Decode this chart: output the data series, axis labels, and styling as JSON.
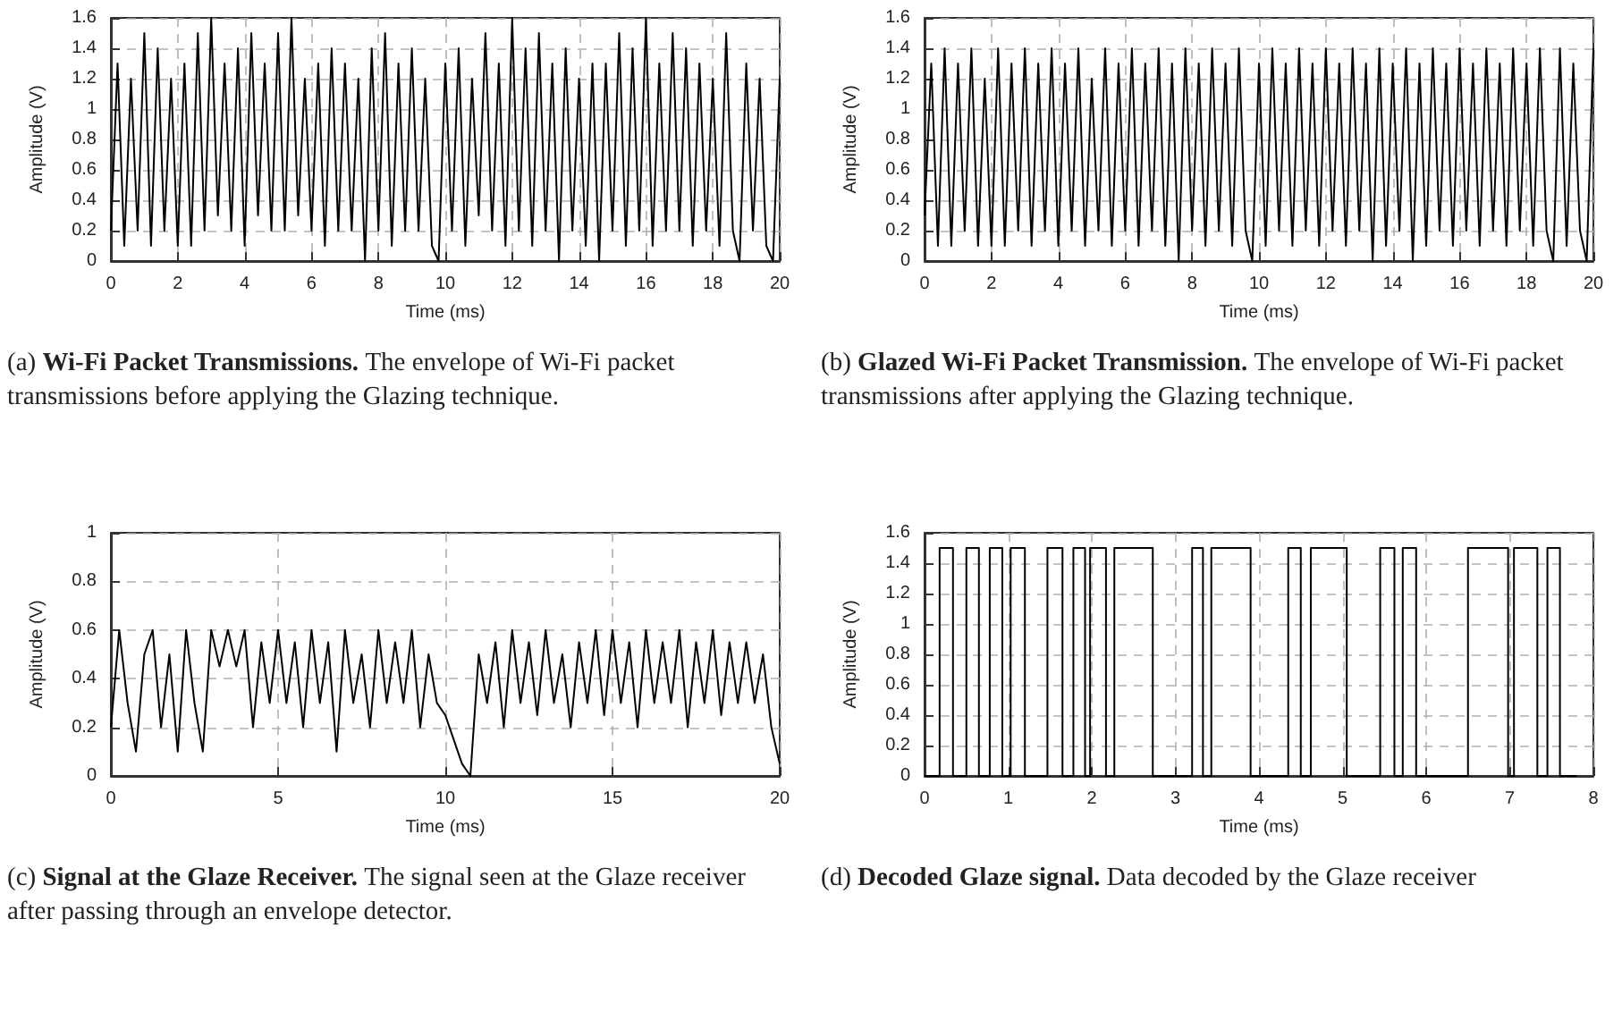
{
  "chart_data": [
    {
      "type": "line",
      "annotations": [
        "(a)"
      ],
      "title": "Wi-Fi Packet Transmissions.",
      "subtitle": "The envelope of Wi-Fi packet transmissions before applying the Glazing technique.",
      "xlabel": "Time (ms)",
      "ylabel": "Amplitude (V)",
      "xlim": [
        0,
        20
      ],
      "xticks": [
        0,
        2,
        4,
        6,
        8,
        10,
        12,
        14,
        16,
        18,
        20
      ],
      "ylim": [
        0,
        1.6
      ],
      "yticks": [
        0,
        0.2,
        0.4,
        0.6,
        0.8,
        1,
        1.2,
        1.4,
        1.6
      ],
      "grid": true,
      "line_style": "solid",
      "x": [
        0,
        0.2,
        0.4,
        0.6,
        0.8,
        1,
        1.2,
        1.4,
        1.6,
        1.8,
        2,
        2.2,
        2.4,
        2.6,
        2.8,
        3,
        3.2,
        3.4,
        3.6,
        3.8,
        4,
        4.2,
        4.4,
        4.6,
        4.8,
        5,
        5.2,
        5.4,
        5.6,
        5.8,
        6,
        6.2,
        6.4,
        6.6,
        6.8,
        7,
        7.2,
        7.4,
        7.6,
        7.8,
        8,
        8.2,
        8.4,
        8.6,
        8.8,
        9,
        9.2,
        9.4,
        9.6,
        9.8,
        10,
        10.2,
        10.4,
        10.6,
        10.8,
        11,
        11.2,
        11.4,
        11.6,
        11.8,
        12,
        12.2,
        12.4,
        12.6,
        12.8,
        13,
        13.2,
        13.4,
        13.6,
        13.8,
        14,
        14.2,
        14.4,
        14.6,
        14.8,
        15,
        15.2,
        15.4,
        15.6,
        15.8,
        16,
        16.2,
        16.4,
        16.6,
        16.8,
        17,
        17.2,
        17.4,
        17.6,
        17.8,
        18,
        18.2,
        18.4,
        18.6,
        18.8,
        19,
        19.2,
        19.4,
        19.6,
        19.8,
        20
      ],
      "series": [
        {
          "color": "#000000",
          "values": [
            0.2,
            1.3,
            0.1,
            1.2,
            0.2,
            1.5,
            0.1,
            1.4,
            0.2,
            1.2,
            0.1,
            1.3,
            0.1,
            1.5,
            0.2,
            1.6,
            0.3,
            1.3,
            0.2,
            1.4,
            0.1,
            1.5,
            0.3,
            1.3,
            0.2,
            1.5,
            0.2,
            1.6,
            0.3,
            1.2,
            0.2,
            1.3,
            0.1,
            1.4,
            0.2,
            1.3,
            0.2,
            1.2,
            0,
            1.4,
            0.2,
            1.5,
            0.1,
            1.3,
            0.2,
            1.4,
            0.2,
            1.2,
            0.1,
            0,
            1.3,
            0.2,
            1.4,
            0.1,
            1.2,
            0.3,
            1.5,
            0.2,
            1.3,
            0.1,
            1.6,
            0.2,
            1.4,
            0.1,
            1.5,
            0.2,
            1.3,
            0,
            1.4,
            0.2,
            1.2,
            0.1,
            1.3,
            0,
            1.3,
            0.2,
            1.5,
            0.1,
            1.4,
            0.2,
            1.6,
            0.1,
            1.3,
            0.2,
            1.5,
            0.2,
            1.4,
            0.1,
            1.3,
            0.2,
            1.2,
            0.1,
            1.5,
            0.2,
            0,
            1.3,
            0.2,
            1.2,
            0.1,
            0,
            1.2
          ]
        }
      ]
    },
    {
      "type": "line",
      "annotations": [
        "(b)"
      ],
      "title": "Glazed Wi-Fi Packet Transmission.",
      "subtitle": "The envelope of Wi-Fi packet transmissions after applying the Glazing technique.",
      "xlabel": "Time (ms)",
      "ylabel": "Amplitude (V)",
      "xlim": [
        0,
        20
      ],
      "xticks": [
        0,
        2,
        4,
        6,
        8,
        10,
        12,
        14,
        16,
        18,
        20
      ],
      "ylim": [
        0,
        1.6
      ],
      "yticks": [
        0,
        0.2,
        0.4,
        0.6,
        0.8,
        1,
        1.2,
        1.4,
        1.6
      ],
      "grid": true,
      "line_style": "solid",
      "x": [
        0,
        0.2,
        0.4,
        0.6,
        0.8,
        1,
        1.2,
        1.4,
        1.6,
        1.8,
        2,
        2.2,
        2.4,
        2.6,
        2.8,
        3,
        3.2,
        3.4,
        3.6,
        3.8,
        4,
        4.2,
        4.4,
        4.6,
        4.8,
        5,
        5.2,
        5.4,
        5.6,
        5.8,
        6,
        6.2,
        6.4,
        6.6,
        6.8,
        7,
        7.2,
        7.4,
        7.6,
        7.8,
        8,
        8.2,
        8.4,
        8.6,
        8.8,
        9,
        9.2,
        9.4,
        9.6,
        9.8,
        10,
        10.2,
        10.4,
        10.6,
        10.8,
        11,
        11.2,
        11.4,
        11.6,
        11.8,
        12,
        12.2,
        12.4,
        12.6,
        12.8,
        13,
        13.2,
        13.4,
        13.6,
        13.8,
        14,
        14.2,
        14.4,
        14.6,
        14.8,
        15,
        15.2,
        15.4,
        15.6,
        15.8,
        16,
        16.2,
        16.4,
        16.6,
        16.8,
        17,
        17.2,
        17.4,
        17.6,
        17.8,
        18,
        18.2,
        18.4,
        18.6,
        18.8,
        19,
        19.2,
        19.4,
        19.6,
        19.8,
        20
      ],
      "series": [
        {
          "color": "#000000",
          "values": [
            0.3,
            1.3,
            0.1,
            1.4,
            0.1,
            1.3,
            0.2,
            1.4,
            0.1,
            1.2,
            0.1,
            1.4,
            0.1,
            1.3,
            0.2,
            1.4,
            0.1,
            1.3,
            0.2,
            1.4,
            0.1,
            1.3,
            0.2,
            1.4,
            0.1,
            1.2,
            0.2,
            1.4,
            0.1,
            1.3,
            0.2,
            1.4,
            0.1,
            1.3,
            0.2,
            1.4,
            0.1,
            1.3,
            0,
            1.4,
            0.2,
            1.3,
            0.1,
            1.4,
            0.2,
            1.3,
            0.1,
            1.4,
            0.2,
            0,
            1.3,
            0.1,
            1.4,
            0.2,
            1.3,
            0.1,
            1.4,
            0.2,
            1.3,
            0.1,
            1.4,
            0.2,
            1.3,
            0.1,
            1.4,
            0.2,
            1.3,
            0,
            1.4,
            0.1,
            1.3,
            0.2,
            1.4,
            0,
            1.3,
            0.1,
            1.4,
            0.2,
            1.3,
            0.1,
            1.4,
            0.2,
            1.3,
            0.1,
            1.4,
            0.2,
            1.3,
            0.1,
            1.4,
            0.2,
            1.3,
            0.1,
            1.4,
            0.2,
            0,
            1.4,
            0.1,
            1.3,
            0.2,
            0,
            1.4
          ]
        }
      ]
    },
    {
      "type": "line",
      "annotations": [
        "(c)"
      ],
      "title": "Signal at the Glaze Receiver.",
      "subtitle": "The signal seen at the Glaze receiver after passing through an envelope detector.",
      "xlabel": "Time (ms)",
      "ylabel": "Amplitude (V)",
      "xlim": [
        0,
        20
      ],
      "xticks": [
        0,
        5,
        10,
        15,
        20
      ],
      "ylim": [
        0,
        1
      ],
      "yticks": [
        0,
        0.2,
        0.4,
        0.6,
        0.8,
        1
      ],
      "grid": true,
      "line_style": "solid",
      "x": [
        0,
        0.25,
        0.5,
        0.75,
        1,
        1.25,
        1.5,
        1.75,
        2,
        2.25,
        2.5,
        2.75,
        3,
        3.25,
        3.5,
        3.75,
        4,
        4.25,
        4.5,
        4.75,
        5,
        5.25,
        5.5,
        5.75,
        6,
        6.25,
        6.5,
        6.75,
        7,
        7.25,
        7.5,
        7.75,
        8,
        8.25,
        8.5,
        8.75,
        9,
        9.25,
        9.5,
        9.75,
        10,
        10.25,
        10.5,
        10.75,
        11,
        11.25,
        11.5,
        11.75,
        12,
        12.25,
        12.5,
        12.75,
        13,
        13.25,
        13.5,
        13.75,
        14,
        14.25,
        14.5,
        14.75,
        15,
        15.25,
        15.5,
        15.75,
        16,
        16.25,
        16.5,
        16.75,
        17,
        17.25,
        17.5,
        17.75,
        18,
        18.25,
        18.5,
        18.75,
        19,
        19.25,
        19.5,
        19.75,
        20
      ],
      "series": [
        {
          "color": "#000000",
          "values": [
            0.2,
            0.6,
            0.3,
            0.1,
            0.5,
            0.6,
            0.2,
            0.5,
            0.1,
            0.6,
            0.3,
            0.1,
            0.6,
            0.45,
            0.6,
            0.45,
            0.6,
            0.2,
            0.55,
            0.3,
            0.6,
            0.3,
            0.55,
            0.2,
            0.6,
            0.3,
            0.55,
            0.1,
            0.6,
            0.3,
            0.5,
            0.2,
            0.6,
            0.3,
            0.55,
            0.3,
            0.6,
            0.2,
            0.5,
            0.3,
            0.25,
            0.15,
            0.05,
            0,
            0.5,
            0.3,
            0.55,
            0.2,
            0.6,
            0.3,
            0.55,
            0.25,
            0.6,
            0.3,
            0.5,
            0.2,
            0.55,
            0.3,
            0.6,
            0.25,
            0.6,
            0.3,
            0.55,
            0.2,
            0.6,
            0.3,
            0.55,
            0.3,
            0.6,
            0.2,
            0.55,
            0.3,
            0.6,
            0.25,
            0.55,
            0.3,
            0.55,
            0.3,
            0.5,
            0.2,
            0.05
          ]
        }
      ]
    },
    {
      "type": "step",
      "annotations": [
        "(d)"
      ],
      "title": "Decoded Glaze signal.",
      "subtitle": "Data decoded by the Glaze receiver",
      "xlabel": "Time (ms)",
      "ylabel": "Amplitude (V)",
      "xlim": [
        0,
        8
      ],
      "xticks": [
        0,
        1,
        2,
        3,
        4,
        5,
        6,
        7,
        8
      ],
      "ylim": [
        0,
        1.6
      ],
      "yticks": [
        0,
        0.2,
        0.4,
        0.6,
        0.8,
        1,
        1.2,
        1.4,
        1.6
      ],
      "grid": true,
      "line_style": "solid",
      "x": [
        0,
        0.18,
        0.34,
        0.5,
        0.65,
        0.78,
        0.93,
        1.03,
        1.2,
        1.47,
        1.65,
        1.78,
        1.92,
        1.98,
        2.17,
        2.27,
        2.73,
        3.2,
        3.33,
        3.43,
        3.9,
        4.35,
        4.5,
        4.62,
        5.05,
        5.45,
        5.62,
        5.72,
        5.88,
        6.5,
        6.98,
        7.05,
        7.33,
        7.45,
        7.6,
        7.8
      ],
      "series": [
        {
          "color": "#000000",
          "values": [
            0,
            1.5,
            0,
            1.5,
            0,
            1.5,
            0,
            1.5,
            0,
            1.5,
            0,
            1.5,
            0,
            1.5,
            0,
            1.5,
            0,
            1.5,
            0,
            1.5,
            0,
            1.5,
            0,
            1.5,
            0,
            1.5,
            0,
            1.5,
            0,
            1.5,
            0,
            1.5,
            0,
            1.5,
            0,
            0
          ]
        }
      ]
    }
  ]
}
